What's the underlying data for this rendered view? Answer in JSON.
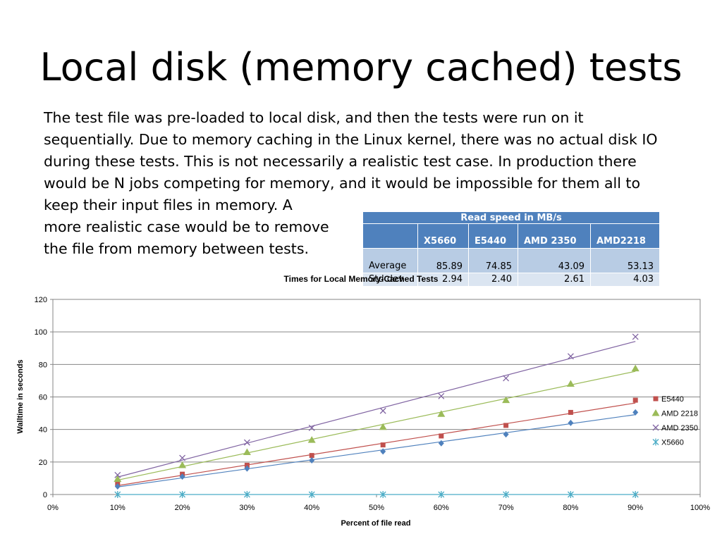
{
  "slide": {
    "title": "Local disk (memory cached) tests",
    "body_lines": [
      "The test file was pre-loaded to local disk, and then the tests were run on it",
      "sequentially.  Due to memory caching in the Linux kernel, there was no actual disk IO",
      "during these tests. This is not necessarily a realistic test case.  In production there",
      "would be N jobs competing for memory, and it would be impossible for them all to",
      "keep their input files in memory.  A",
      "more realistic case would be to remove",
      "the file from memory between tests."
    ]
  },
  "table": {
    "caption": "Read speed in MB/s",
    "columns": [
      "X5660",
      "E5440",
      "AMD 2350",
      "AMD2218"
    ],
    "rows": [
      {
        "label": "Average",
        "values": [
          "85.89",
          "74.85",
          "43.09",
          "53.13"
        ]
      },
      {
        "label": "Std dev",
        "values": [
          "2.94",
          "2.40",
          "2.61",
          "4.03"
        ]
      }
    ],
    "header_color": "#4f81bd",
    "band_colors": [
      "#b8cce4",
      "#dbe5f1"
    ]
  },
  "chart_data": {
    "type": "scatter",
    "title": "Times for Local Memory-Cached Tests",
    "xlabel": "Percent of file read",
    "ylabel": "Walltime in seconds",
    "xlim": [
      0,
      100
    ],
    "ylim": [
      0,
      120
    ],
    "x_tick_labels": [
      "0%",
      "10%",
      "20%",
      "30%",
      "40%",
      "50%",
      "60%",
      "70%",
      "80%",
      "90%",
      "100%"
    ],
    "y_tick_labels": [
      "0",
      "20",
      "40",
      "60",
      "80",
      "100",
      "120"
    ],
    "gridlines": "horizontal",
    "trendlines": true,
    "legend_position": "right",
    "x": [
      10,
      20,
      30,
      40,
      51,
      60,
      70,
      80,
      90
    ],
    "series": [
      {
        "name": "E5440",
        "marker": "square",
        "color": "#c0504d",
        "values": [
          6.5,
          12.5,
          18,
          24,
          30.5,
          36,
          42.5,
          50.5,
          58
        ]
      },
      {
        "name": "AMD 2218",
        "marker": "triangle",
        "color": "#9bbb59",
        "values": [
          9.5,
          18,
          26,
          33.5,
          41.5,
          49.5,
          58,
          68,
          77.5
        ]
      },
      {
        "name": "AMD 2350",
        "marker": "x",
        "color": "#8064a2",
        "values": [
          12,
          22.5,
          32,
          41,
          51.5,
          60.5,
          71.5,
          85,
          97
        ]
      },
      {
        "name": "X5660",
        "marker": "asterisk",
        "color": "#4bacc6",
        "values": [
          0,
          0,
          0,
          0,
          0,
          0,
          0,
          0,
          0
        ]
      },
      {
        "name": "",
        "marker": "diamond",
        "color": "#4f81bd",
        "values": [
          5,
          11,
          16,
          21,
          26.5,
          31.5,
          37,
          44,
          50.5
        ]
      }
    ]
  }
}
